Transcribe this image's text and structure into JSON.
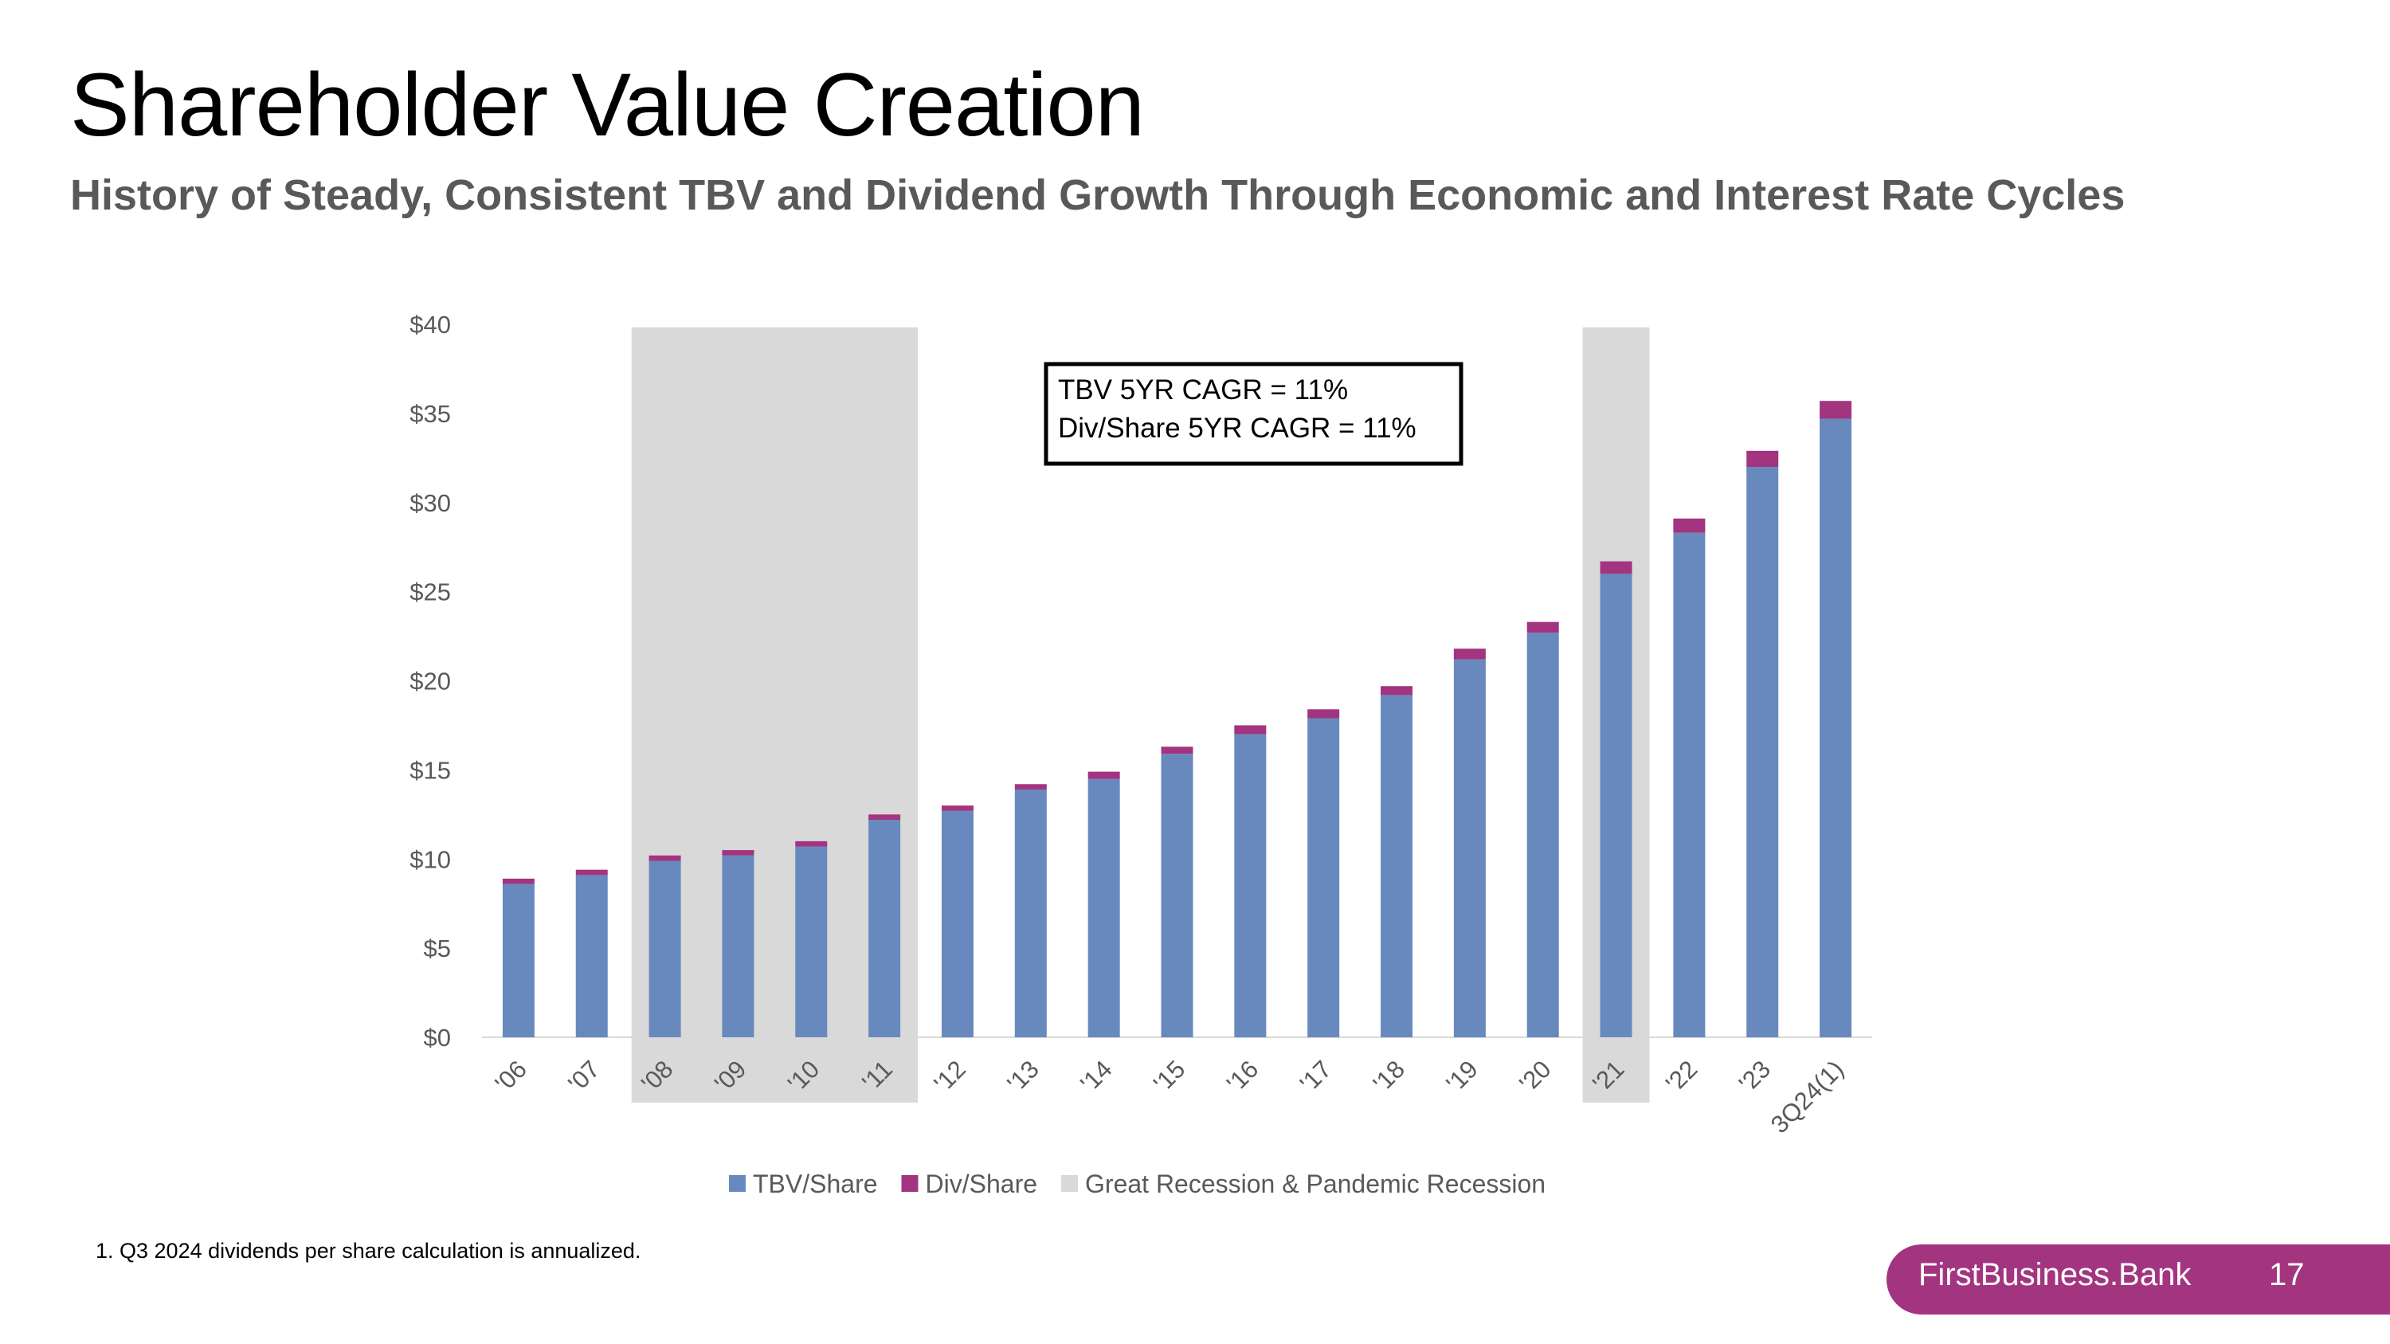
{
  "slide": {
    "title": "Shareholder Value Creation",
    "subtitle": "History of Steady, Consistent TBV and Dividend Growth Through Economic and Interest Rate Cycles",
    "footnote": "1.   Q3 2024 dividends per share calculation is annualized.",
    "brand": "FirstBusiness.Bank",
    "page_number": "17"
  },
  "colors": {
    "tbv": "#6789be",
    "div": "#a3347f",
    "recession": "#d9d9d9",
    "axis_text": "#595959"
  },
  "chart_data": {
    "type": "bar",
    "stacked": true,
    "categories": [
      "'06",
      "'07",
      "'08",
      "'09",
      "'10",
      "'11",
      "'12",
      "'13",
      "'14",
      "'15",
      "'16",
      "'17",
      "'18",
      "'19",
      "'20",
      "'21",
      "'22",
      "'23",
      "3Q24(1)"
    ],
    "series": [
      {
        "name": "TBV/Share",
        "values": [
          8.6,
          9.1,
          9.9,
          10.2,
          10.7,
          12.2,
          12.7,
          13.9,
          14.5,
          15.9,
          17.0,
          17.9,
          19.2,
          21.2,
          22.7,
          26.0,
          28.3,
          32.0,
          34.7
        ]
      },
      {
        "name": "Div/Share",
        "values": [
          0.3,
          0.3,
          0.3,
          0.3,
          0.3,
          0.3,
          0.3,
          0.3,
          0.4,
          0.4,
          0.5,
          0.5,
          0.5,
          0.6,
          0.6,
          0.7,
          0.8,
          0.9,
          1.0
        ]
      }
    ],
    "shaded_regions": [
      {
        "name": "Great Recession & Pandemic Recession",
        "from": "'08",
        "to": "'11"
      },
      {
        "name": "Great Recession & Pandemic Recession",
        "from": "'21",
        "to": "'21"
      }
    ],
    "y_ticks": [
      "$0",
      "$5",
      "$10",
      "$15",
      "$20",
      "$25",
      "$30",
      "$35",
      "$40"
    ],
    "ylim": [
      0,
      40
    ],
    "legend": [
      "TBV/Share",
      "Div/Share",
      "Great Recession & Pandemic Recession"
    ],
    "annotation": [
      "TBV 5YR CAGR = 11%",
      "Div/Share 5YR CAGR = 11%"
    ],
    "legend_position": "bottom-center"
  }
}
